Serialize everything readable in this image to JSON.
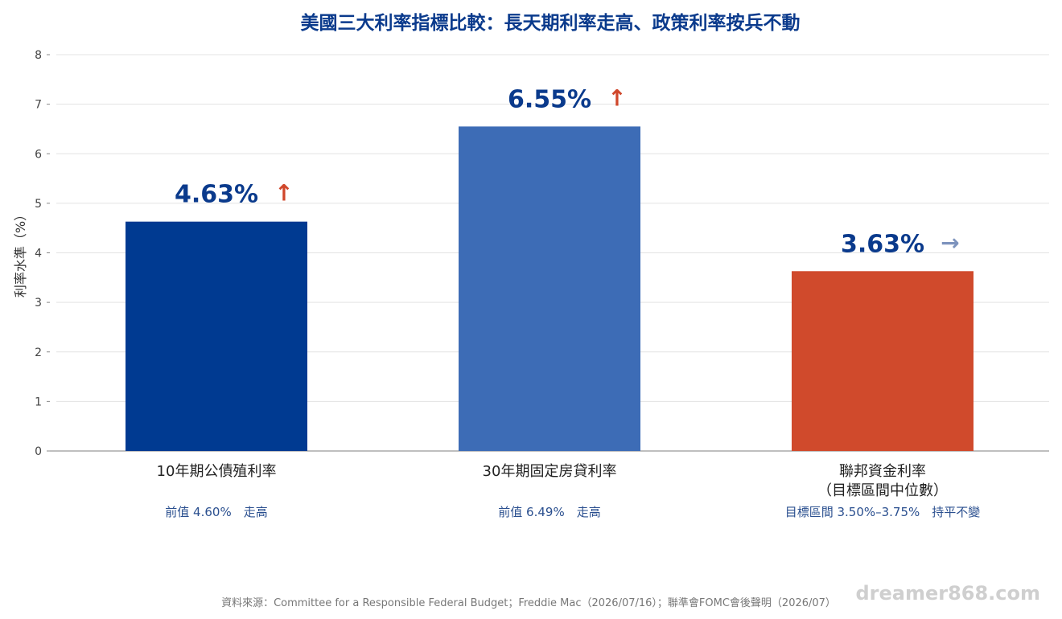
{
  "chart_data": {
    "type": "bar",
    "title": "美國三大利率指標比較：長天期利率走高、政策利率按兵不動",
    "ylabel": "利率水準（%）",
    "ylim": [
      0,
      8
    ],
    "yticks": [
      "0",
      "1",
      "2",
      "3",
      "4",
      "5",
      "6",
      "7",
      "8"
    ],
    "grid": true,
    "bars": [
      {
        "label": "10年期公債殖利率",
        "label_line2": "",
        "value": 4.63,
        "value_label": "4.63%",
        "arrow": "↑",
        "arrow_color": "#d0472b",
        "color": "#003a91",
        "note": "前值 4.60%　走高"
      },
      {
        "label": "30年期固定房貸利率",
        "label_line2": "",
        "value": 6.55,
        "value_label": "6.55%",
        "arrow": "↑",
        "arrow_color": "#d0472b",
        "color": "#3d6cb6",
        "note": "前值 6.49%　走高"
      },
      {
        "label": "聯邦資金利率",
        "label_line2": "（目標區間中位數）",
        "value": 3.63,
        "value_label": "3.63%",
        "arrow": "→",
        "arrow_color": "#7d93bd",
        "color": "#d04a2c",
        "note": "目標區間 3.50%–3.75%　持平不變"
      }
    ]
  },
  "footer": {
    "source": "資料來源：Committee for a Responsible Federal Budget；Freddie Mac（2026/07/16）；聯準會FOMC會後聲明（2026/07）",
    "watermark": "dreamer868.com"
  }
}
